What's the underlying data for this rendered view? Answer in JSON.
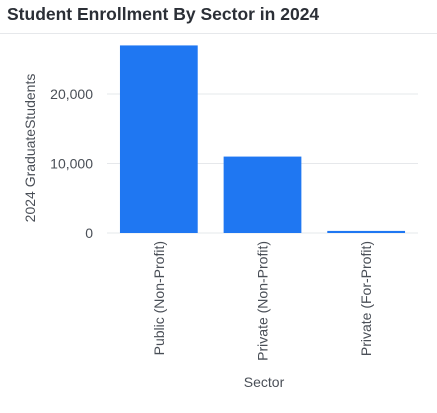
{
  "chart_data": {
    "type": "bar",
    "title": "Student Enrollment By Sector in 2024",
    "xlabel": "Sector",
    "ylabel": "2024 GraduateStudents",
    "categories": [
      "Public (Non-Profit)",
      "Private (Non-Profit)",
      "Private (For-Profit)"
    ],
    "values": [
      27000,
      11000,
      300
    ],
    "ylim": [
      0,
      28500
    ],
    "yticks": [
      0,
      10000,
      20000
    ],
    "ytick_labels": [
      "0",
      "10,000",
      "20,000"
    ],
    "grid": true,
    "bar_color": "#1f77f2"
  }
}
